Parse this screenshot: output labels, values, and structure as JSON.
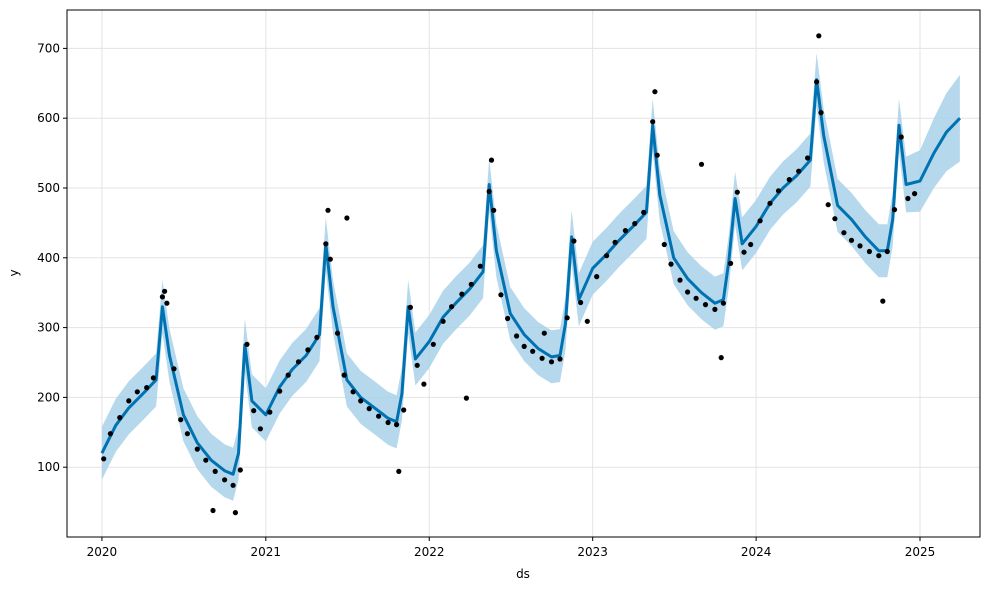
{
  "chart_data": {
    "type": "scatter",
    "title": "",
    "xlabel": "ds",
    "ylabel": "y",
    "x_range": [
      "2019-10-15",
      "2025-05-15"
    ],
    "ylim": [
      0,
      755
    ],
    "grid": true,
    "x_tick_labels": [
      "2020",
      "2021",
      "2022",
      "2023",
      "2024",
      "2025"
    ],
    "x_tick_dates": [
      "2020-01-01",
      "2021-01-01",
      "2022-01-01",
      "2023-01-01",
      "2024-01-01",
      "2025-01-01"
    ],
    "y_ticks": [
      100,
      200,
      300,
      400,
      500,
      600,
      700
    ],
    "colors": {
      "forecast_line": "#0072B2",
      "uncertainty_band": "#A8D1EA",
      "observed_points": "#000000",
      "grid": "#e3e3e3"
    },
    "series": [
      {
        "kind": "observed",
        "marker": "point",
        "points": [
          [
            "2020-01-05",
            112
          ],
          [
            "2020-01-20",
            148
          ],
          [
            "2020-02-10",
            171
          ],
          [
            "2020-03-01",
            195
          ],
          [
            "2020-03-20",
            208
          ],
          [
            "2020-04-10",
            214
          ],
          [
            "2020-04-25",
            228
          ],
          [
            "2020-05-15",
            344
          ],
          [
            "2020-05-25",
            335
          ],
          [
            "2020-06-10",
            241
          ],
          [
            "2020-06-25",
            168
          ],
          [
            "2020-07-10",
            148
          ],
          [
            "2020-08-01",
            126
          ],
          [
            "2020-08-20",
            110
          ],
          [
            "2020-09-10",
            94
          ],
          [
            "2020-10-01",
            82
          ],
          [
            "2020-10-20",
            74
          ],
          [
            "2020-11-05",
            96
          ],
          [
            "2020-11-20",
            276
          ],
          [
            "2020-12-05",
            181
          ],
          [
            "2020-12-20",
            155
          ],
          [
            "2021-01-10",
            179
          ],
          [
            "2021-02-01",
            209
          ],
          [
            "2021-02-20",
            232
          ],
          [
            "2021-03-15",
            251
          ],
          [
            "2021-04-05",
            268
          ],
          [
            "2021-04-25",
            286
          ],
          [
            "2021-05-15",
            420
          ],
          [
            "2021-05-25",
            398
          ],
          [
            "2021-06-10",
            292
          ],
          [
            "2021-06-25",
            232
          ],
          [
            "2021-07-15",
            208
          ],
          [
            "2021-08-01",
            195
          ],
          [
            "2021-08-20",
            184
          ],
          [
            "2021-09-10",
            173
          ],
          [
            "2021-10-01",
            164
          ],
          [
            "2021-10-20",
            161
          ],
          [
            "2021-11-05",
            182
          ],
          [
            "2021-11-20",
            329
          ],
          [
            "2021-12-05",
            246
          ],
          [
            "2021-12-20",
            219
          ],
          [
            "2022-01-10",
            276
          ],
          [
            "2022-02-01",
            309
          ],
          [
            "2022-02-20",
            330
          ],
          [
            "2022-03-15",
            348
          ],
          [
            "2022-04-05",
            362
          ],
          [
            "2022-04-25",
            388
          ],
          [
            "2022-05-15",
            495
          ],
          [
            "2022-05-25",
            468
          ],
          [
            "2022-06-10",
            347
          ],
          [
            "2022-06-25",
            313
          ],
          [
            "2022-07-15",
            288
          ],
          [
            "2022-08-01",
            273
          ],
          [
            "2022-08-20",
            266
          ],
          [
            "2022-09-10",
            256
          ],
          [
            "2022-10-01",
            251
          ],
          [
            "2022-10-20",
            255
          ],
          [
            "2022-11-05",
            314
          ],
          [
            "2022-11-20",
            424
          ],
          [
            "2022-12-05",
            336
          ],
          [
            "2022-12-20",
            309
          ],
          [
            "2023-01-10",
            373
          ],
          [
            "2023-02-01",
            403
          ],
          [
            "2023-02-20",
            422
          ],
          [
            "2023-03-15",
            439
          ],
          [
            "2023-04-05",
            449
          ],
          [
            "2023-04-25",
            465
          ],
          [
            "2023-05-15",
            595
          ],
          [
            "2023-05-25",
            547
          ],
          [
            "2023-06-10",
            419
          ],
          [
            "2023-06-25",
            391
          ],
          [
            "2023-07-15",
            368
          ],
          [
            "2023-08-01",
            351
          ],
          [
            "2023-08-20",
            342
          ],
          [
            "2023-09-10",
            333
          ],
          [
            "2023-10-01",
            326
          ],
          [
            "2023-10-20",
            335
          ],
          [
            "2023-11-05",
            392
          ],
          [
            "2023-11-20",
            494
          ],
          [
            "2023-12-05",
            408
          ],
          [
            "2023-12-20",
            419
          ],
          [
            "2024-01-10",
            453
          ],
          [
            "2024-02-01",
            478
          ],
          [
            "2024-02-20",
            496
          ],
          [
            "2024-03-15",
            512
          ],
          [
            "2024-04-05",
            524
          ],
          [
            "2024-04-25",
            543
          ],
          [
            "2024-05-15",
            652
          ],
          [
            "2024-05-25",
            608
          ],
          [
            "2024-06-10",
            476
          ],
          [
            "2024-06-25",
            456
          ],
          [
            "2024-07-15",
            436
          ],
          [
            "2024-08-01",
            425
          ],
          [
            "2024-08-20",
            417
          ],
          [
            "2024-09-10",
            409
          ],
          [
            "2024-10-01",
            403
          ],
          [
            "2024-10-20",
            409
          ],
          [
            "2024-11-05",
            469
          ],
          [
            "2024-11-20",
            573
          ],
          [
            "2024-12-05",
            485
          ],
          [
            "2024-12-20",
            492
          ],
          [
            "2020-05-20",
            352
          ],
          [
            "2021-05-20",
            468
          ],
          [
            "2022-05-20",
            540
          ],
          [
            "2023-05-20",
            638
          ],
          [
            "2024-05-20",
            718
          ],
          [
            "2021-07-01",
            457
          ],
          [
            "2022-03-25",
            199
          ],
          [
            "2022-09-15",
            292
          ],
          [
            "2023-09-01",
            534
          ],
          [
            "2024-10-10",
            338
          ],
          [
            "2023-10-15",
            257
          ],
          [
            "2020-10-25",
            35
          ],
          [
            "2020-09-05",
            38
          ],
          [
            "2021-10-25",
            94
          ]
        ]
      },
      {
        "kind": "forecast",
        "x": [
          "2020-01-01",
          "2020-02-01",
          "2020-03-01",
          "2020-04-01",
          "2020-05-01",
          "2020-05-15",
          "2020-05-31",
          "2020-07-01",
          "2020-08-01",
          "2020-09-01",
          "2020-10-01",
          "2020-10-20",
          "2020-11-01",
          "2020-11-15",
          "2020-12-01",
          "2021-01-01",
          "2021-02-01",
          "2021-03-01",
          "2021-04-01",
          "2021-05-01",
          "2021-05-15",
          "2021-05-31",
          "2021-07-01",
          "2021-08-01",
          "2021-09-01",
          "2021-10-01",
          "2021-10-20",
          "2021-11-01",
          "2021-11-15",
          "2021-12-01",
          "2022-01-01",
          "2022-02-01",
          "2022-03-01",
          "2022-04-01",
          "2022-05-01",
          "2022-05-15",
          "2022-05-31",
          "2022-07-01",
          "2022-08-01",
          "2022-09-01",
          "2022-10-01",
          "2022-10-20",
          "2022-11-01",
          "2022-11-15",
          "2022-12-01",
          "2023-01-01",
          "2023-02-01",
          "2023-03-01",
          "2023-04-01",
          "2023-05-01",
          "2023-05-15",
          "2023-05-31",
          "2023-07-01",
          "2023-08-01",
          "2023-09-01",
          "2023-10-01",
          "2023-10-20",
          "2023-11-01",
          "2023-11-15",
          "2023-12-01",
          "2024-01-01",
          "2024-02-01",
          "2024-03-01",
          "2024-04-01",
          "2024-05-01",
          "2024-05-15",
          "2024-05-31",
          "2024-07-01",
          "2024-08-01",
          "2024-09-01",
          "2024-10-01",
          "2024-10-20",
          "2024-11-01",
          "2024-11-15",
          "2024-12-01",
          "2025-01-01",
          "2025-02-01",
          "2025-03-01",
          "2025-03-31"
        ],
        "yhat": [
          120,
          160,
          185,
          205,
          225,
          330,
          260,
          175,
          135,
          110,
          95,
          90,
          120,
          275,
          195,
          175,
          215,
          240,
          260,
          290,
          420,
          330,
          225,
          200,
          185,
          170,
          165,
          205,
          330,
          255,
          280,
          315,
          335,
          355,
          380,
          505,
          410,
          320,
          290,
          270,
          258,
          260,
          305,
          430,
          340,
          385,
          405,
          425,
          445,
          465,
          590,
          490,
          400,
          370,
          350,
          335,
          340,
          395,
          485,
          420,
          445,
          478,
          500,
          518,
          540,
          655,
          575,
          475,
          455,
          430,
          410,
          410,
          455,
          590,
          505,
          510,
          550,
          580,
          600
        ],
        "band_halfwidth": [
          38,
          38,
          38,
          38,
          38,
          38,
          38,
          38,
          38,
          38,
          38,
          38,
          38,
          38,
          38,
          38,
          38,
          38,
          38,
          38,
          38,
          38,
          38,
          38,
          38,
          38,
          38,
          38,
          38,
          38,
          38,
          38,
          38,
          38,
          38,
          38,
          38,
          38,
          38,
          38,
          38,
          38,
          38,
          38,
          38,
          38,
          38,
          38,
          38,
          38,
          38,
          38,
          38,
          38,
          38,
          38,
          38,
          38,
          38,
          38,
          38,
          38,
          38,
          38,
          38,
          38,
          38,
          38,
          38,
          38,
          38,
          38,
          38,
          38,
          40,
          44,
          50,
          56,
          62
        ]
      }
    ]
  }
}
